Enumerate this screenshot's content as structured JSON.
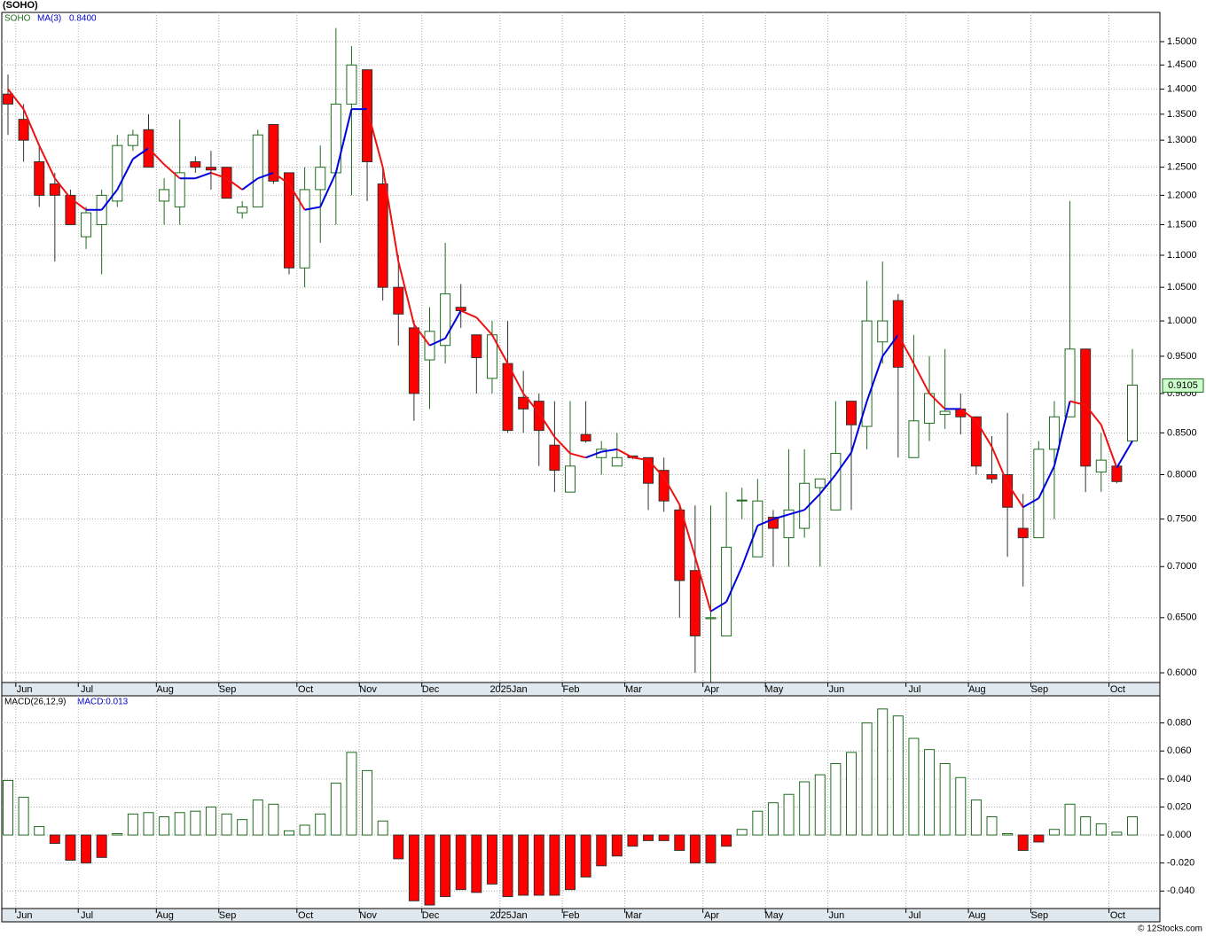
{
  "chart_data": [
    {
      "type": "candlestick",
      "title": "(SOHO)",
      "symbol": "SOHO",
      "ma_name": "MA(3)",
      "ma_legend_value": "0.8400",
      "log_scale": true,
      "grid": true,
      "up_color": "#1e6b1e",
      "down_color": "#ff0000",
      "ma_up_color": "#0000dd",
      "ma_down_color": "#ee1111",
      "categories": [
        null,
        "Jun",
        null,
        null,
        null,
        "Jul",
        null,
        null,
        null,
        null,
        "Aug",
        null,
        null,
        null,
        "Sep",
        null,
        null,
        null,
        null,
        "Oct",
        null,
        null,
        null,
        "Nov",
        null,
        null,
        null,
        "Dec",
        null,
        null,
        null,
        null,
        "2025Jan",
        null,
        null,
        null,
        "Feb",
        null,
        null,
        null,
        "Mar",
        null,
        null,
        null,
        null,
        "Apr",
        null,
        null,
        null,
        "May",
        null,
        null,
        null,
        "Jun",
        null,
        null,
        null,
        null,
        "Jul",
        null,
        null,
        null,
        "Aug",
        null,
        null,
        null,
        "Sep",
        null,
        null,
        null,
        null,
        "Oct",
        null
      ],
      "open": [
        1.39,
        1.34,
        1.26,
        1.22,
        1.2,
        1.13,
        1.15,
        1.19,
        1.29,
        1.32,
        1.19,
        1.18,
        1.26,
        1.25,
        1.25,
        1.17,
        1.18,
        1.33,
        1.24,
        1.08,
        1.21,
        1.24,
        1.37,
        1.44,
        1.22,
        1.05,
        0.99,
        0.945,
        0.965,
        1.02,
        0.98,
        0.92,
        0.94,
        0.895,
        0.89,
        0.835,
        0.78,
        0.848,
        0.82,
        0.81,
        0.822,
        0.82,
        0.805,
        0.76,
        0.696,
        0.649,
        0.633,
        0.77,
        0.71,
        0.752,
        0.73,
        0.74,
        0.785,
        0.76,
        0.89,
        0.858,
        0.97,
        1.03,
        0.82,
        0.862,
        0.873,
        0.88,
        0.87,
        0.8,
        0.8,
        0.74,
        0.73,
        0.83,
        0.87,
        0.96,
        0.803,
        0.81,
        0.84
      ],
      "high": [
        1.43,
        1.37,
        1.29,
        1.24,
        1.21,
        1.18,
        1.21,
        1.31,
        1.32,
        1.35,
        1.23,
        1.34,
        1.27,
        1.28,
        1.25,
        1.19,
        1.32,
        1.33,
        1.24,
        1.25,
        1.29,
        1.53,
        1.49,
        1.44,
        1.25,
        1.1,
        1.0,
        1.02,
        1.12,
        1.055,
        0.98,
        1.0,
        1.0,
        0.93,
        0.9,
        0.89,
        0.89,
        0.89,
        0.84,
        0.85,
        0.822,
        0.82,
        0.82,
        0.765,
        0.765,
        0.765,
        0.78,
        0.785,
        0.795,
        0.76,
        0.83,
        0.83,
        0.795,
        0.89,
        0.89,
        1.06,
        1.09,
        1.04,
        0.98,
        0.95,
        0.96,
        0.9,
        0.87,
        0.846,
        0.875,
        0.778,
        0.84,
        0.89,
        1.19,
        0.96,
        0.85,
        0.81,
        0.96
      ],
      "low": [
        1.31,
        1.26,
        1.18,
        1.09,
        1.15,
        1.11,
        1.07,
        1.18,
        1.28,
        1.25,
        1.15,
        1.15,
        1.24,
        1.21,
        1.195,
        1.16,
        1.18,
        1.22,
        1.07,
        1.05,
        1.12,
        1.15,
        1.2,
        1.19,
        1.03,
        0.965,
        0.865,
        0.88,
        0.94,
        0.99,
        0.9,
        0.9,
        0.85,
        0.85,
        0.81,
        0.78,
        0.78,
        0.838,
        0.8,
        0.81,
        0.818,
        0.76,
        0.758,
        0.65,
        0.6,
        0.592,
        0.633,
        0.75,
        0.71,
        0.7,
        0.7,
        0.73,
        0.7,
        0.76,
        0.76,
        0.83,
        0.94,
        0.82,
        0.82,
        0.84,
        0.855,
        0.848,
        0.8,
        0.79,
        0.71,
        0.68,
        0.73,
        0.75,
        0.87,
        0.78,
        0.78,
        0.79,
        0.84
      ],
      "close": [
        1.37,
        1.3,
        1.2,
        1.2,
        1.15,
        1.17,
        1.2,
        1.29,
        1.31,
        1.25,
        1.21,
        1.24,
        1.25,
        1.245,
        1.195,
        1.18,
        1.31,
        1.225,
        1.08,
        1.21,
        1.25,
        1.37,
        1.45,
        1.26,
        1.05,
        1.01,
        0.9,
        0.985,
        1.04,
        1.015,
        0.948,
        0.98,
        0.853,
        0.88,
        0.853,
        0.805,
        0.81,
        0.84,
        0.83,
        0.82,
        0.82,
        0.79,
        0.77,
        0.686,
        0.633,
        0.65,
        0.72,
        0.771,
        0.77,
        0.74,
        0.76,
        0.79,
        0.795,
        0.825,
        0.86,
        1.0,
        1.0,
        0.935,
        0.865,
        0.9,
        0.877,
        0.87,
        0.81,
        0.795,
        0.763,
        0.73,
        0.83,
        0.87,
        0.96,
        0.81,
        0.817,
        0.792,
        0.911
      ],
      "ma": [
        1.4,
        1.36,
        1.29,
        1.23,
        1.195,
        1.175,
        1.175,
        1.21,
        1.265,
        1.285,
        1.255,
        1.23,
        1.23,
        1.24,
        1.23,
        1.21,
        1.23,
        1.24,
        1.22,
        1.175,
        1.18,
        1.24,
        1.36,
        1.36,
        1.25,
        1.09,
        0.995,
        0.965,
        0.975,
        1.015,
        1.005,
        0.98,
        0.94,
        0.9,
        0.875,
        0.845,
        0.825,
        0.82,
        0.827,
        0.83,
        0.82,
        0.817,
        0.797,
        0.766,
        0.71,
        0.656,
        0.665,
        0.7,
        0.743,
        0.75,
        0.755,
        0.76,
        0.778,
        0.8,
        0.826,
        0.89,
        0.95,
        0.98,
        0.94,
        0.9,
        0.88,
        0.88,
        0.865,
        0.833,
        0.79,
        0.763,
        0.773,
        0.81,
        0.89,
        0.885,
        0.86,
        0.808,
        0.84
      ],
      "last_price": 0.9105,
      "ylim": [
        0.5916,
        1.565
      ],
      "yticks": [
        {
          "value": 1.5,
          "label": "1.5000"
        },
        {
          "value": 1.45,
          "label": "1.4500"
        },
        {
          "value": 1.4,
          "label": "1.4000"
        },
        {
          "value": 1.35,
          "label": "1.3500"
        },
        {
          "value": 1.3,
          "label": "1.3000"
        },
        {
          "value": 1.25,
          "label": "1.2500"
        },
        {
          "value": 1.2,
          "label": "1.2000"
        },
        {
          "value": 1.15,
          "label": "1.1500"
        },
        {
          "value": 1.1,
          "label": "1.1000"
        },
        {
          "value": 1.05,
          "label": "1.0500"
        },
        {
          "value": 1.0,
          "label": "1.0000"
        },
        {
          "value": 0.95,
          "label": "0.9500"
        },
        {
          "value": 0.9,
          "label": "0.9000"
        },
        {
          "value": 0.85,
          "label": "0.8500"
        },
        {
          "value": 0.8,
          "label": "0.8000"
        },
        {
          "value": 0.75,
          "label": "0.7500"
        },
        {
          "value": 0.7,
          "label": "0.7000"
        },
        {
          "value": 0.65,
          "label": "0.6500"
        },
        {
          "value": 0.6,
          "label": "0.6000"
        }
      ]
    },
    {
      "type": "histogram-bar",
      "title": "MACD(26,12,9)",
      "legend_value": "MACD:0.013",
      "grid": true,
      "up_color": "#1e6b1e",
      "down_color": "#ff0000",
      "categories": [
        null,
        "Jun",
        null,
        null,
        null,
        "Jul",
        null,
        null,
        null,
        null,
        "Aug",
        null,
        null,
        null,
        "Sep",
        null,
        null,
        null,
        null,
        "Oct",
        null,
        null,
        null,
        "Nov",
        null,
        null,
        null,
        "Dec",
        null,
        null,
        null,
        null,
        "2025Jan",
        null,
        null,
        null,
        "Feb",
        null,
        null,
        null,
        "Mar",
        null,
        null,
        null,
        null,
        "Apr",
        null,
        null,
        null,
        "May",
        null,
        null,
        null,
        "Jun",
        null,
        null,
        null,
        null,
        "Jul",
        null,
        null,
        null,
        "Aug",
        null,
        null,
        null,
        "Sep",
        null,
        null,
        null,
        null,
        "Oct",
        null
      ],
      "values": [
        0.039,
        0.027,
        0.006,
        -0.006,
        -0.018,
        -0.02,
        -0.016,
        0.001,
        0.015,
        0.016,
        0.013,
        0.016,
        0.017,
        0.02,
        0.015,
        0.011,
        0.025,
        0.022,
        0.003,
        0.007,
        0.015,
        0.037,
        0.059,
        0.046,
        0.01,
        -0.017,
        -0.047,
        -0.05,
        -0.044,
        -0.039,
        -0.041,
        -0.035,
        -0.044,
        -0.043,
        -0.043,
        -0.043,
        -0.039,
        -0.03,
        -0.022,
        -0.015,
        -0.008,
        -0.004,
        -0.004,
        -0.011,
        -0.02,
        -0.02,
        -0.008,
        0.004,
        0.017,
        0.023,
        0.029,
        0.038,
        0.043,
        0.051,
        0.059,
        0.08,
        0.09,
        0.085,
        0.069,
        0.061,
        0.051,
        0.041,
        0.025,
        0.013,
        0.001,
        -0.011,
        -0.005,
        0.004,
        0.022,
        0.013,
        0.008,
        0.002,
        0.013
      ],
      "ylim": [
        -0.0525,
        0.0994
      ],
      "yticks": [
        {
          "value": 0.08,
          "label": "0.080"
        },
        {
          "value": 0.06,
          "label": "0.060"
        },
        {
          "value": 0.04,
          "label": "0.040"
        },
        {
          "value": 0.02,
          "label": "0.020"
        },
        {
          "value": 0,
          "label": "0.000"
        },
        {
          "value": -0.02,
          "label": "-0.020"
        },
        {
          "value": -0.04,
          "label": "-0.040"
        }
      ]
    }
  ],
  "footer": "© 12Stocks.com"
}
